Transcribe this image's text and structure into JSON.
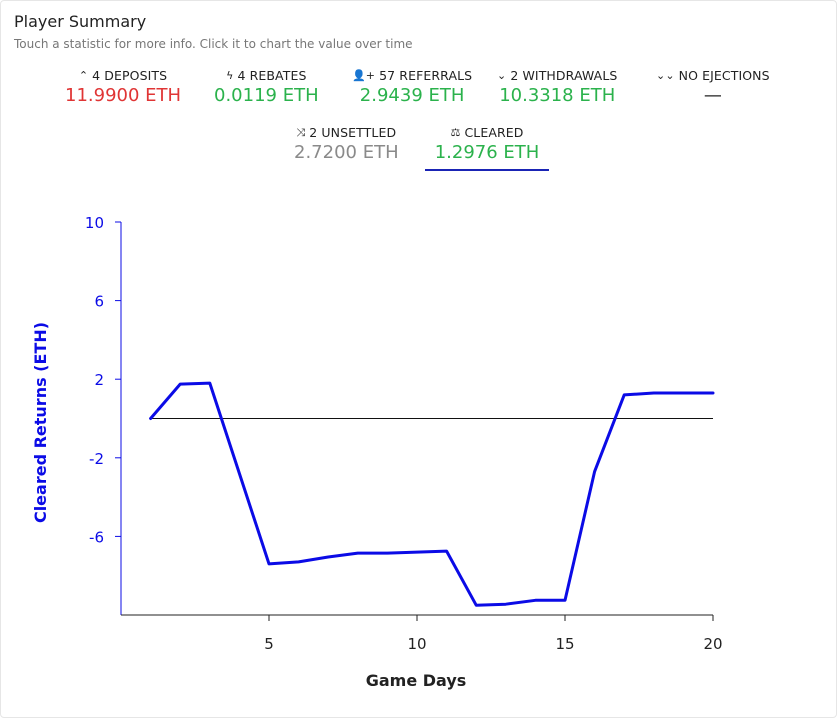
{
  "header": {
    "title": "Player Summary",
    "subtitle": "Touch a statistic for more info. Click it to chart the value over time"
  },
  "stats": [
    {
      "icon": "chevron-up-icon",
      "glyph": "⌃",
      "label": "4 DEPOSITS",
      "value": "11.9900 ETH",
      "color": "#e03535"
    },
    {
      "icon": "bolt-icon",
      "glyph": "ϟ",
      "label": "4 REBATES",
      "value": "0.0119 ETH",
      "color": "#2bb24c"
    },
    {
      "icon": "user-plus-icon",
      "glyph": "👤+",
      "label": "57 REFERRALS",
      "value": "2.9439 ETH",
      "color": "#2bb24c"
    },
    {
      "icon": "chevron-down-icon",
      "glyph": "⌄",
      "label": "2 WITHDRAWALS",
      "value": "10.3318 ETH",
      "color": "#2bb24c"
    },
    {
      "icon": "double-chevron-down-icon",
      "glyph": "⌄⌄",
      "label": "NO EJECTIONS",
      "value": "—",
      "color": "#222222"
    },
    {
      "icon": "shuffle-icon",
      "glyph": "⤨",
      "label": "2 UNSETTLED",
      "value": "2.7200 ETH",
      "color": "#8a8a8a"
    },
    {
      "icon": "balance-scale-icon",
      "glyph": "⚖",
      "label": "CLEARED",
      "value": "1.2976 ETH",
      "color": "#2bb24c",
      "active": true
    }
  ],
  "chart_data": {
    "type": "line",
    "xlabel": "Game Days",
    "ylabel": "Cleared Returns (ETH)",
    "xlim": [
      0,
      20
    ],
    "ylim": [
      -10,
      10
    ],
    "xticks": [
      5,
      10,
      15,
      20
    ],
    "yticks": [
      10,
      6,
      2,
      -2,
      -6
    ],
    "zero_line": true,
    "line_color": "#0b0be6",
    "series": [
      {
        "x": [
          1,
          2,
          3,
          5,
          6,
          7,
          8,
          9,
          10,
          11,
          12,
          13,
          14,
          15,
          16,
          17,
          18,
          19,
          20
        ],
        "values": [
          0.0,
          1.75,
          1.8,
          -7.4,
          -7.3,
          -7.05,
          -6.85,
          -6.85,
          -6.8,
          -6.75,
          -9.5,
          -9.45,
          -9.25,
          -9.25,
          -2.7,
          1.2,
          1.3,
          1.3,
          1.3
        ]
      }
    ]
  }
}
